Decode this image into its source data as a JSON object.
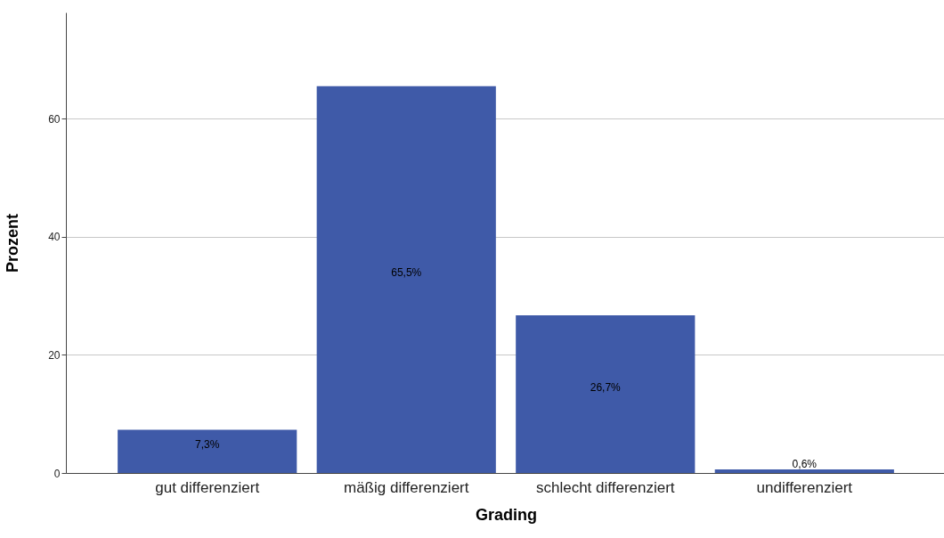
{
  "chart_data": {
    "type": "bar",
    "xlabel": "Grading",
    "ylabel": "Prozent",
    "categories": [
      "gut differenziert",
      "mäßig differenziert",
      "schlecht differenziert",
      "undifferenziert"
    ],
    "values": [
      7.3,
      65.5,
      26.7,
      0.6
    ],
    "value_labels": [
      "7,3%",
      "65,5%",
      "26,7%",
      "0,6%"
    ],
    "color": "#3f5aa8",
    "ylim": [
      0,
      78
    ],
    "yticks": [
      0,
      20,
      40,
      60
    ],
    "grid": "y"
  }
}
